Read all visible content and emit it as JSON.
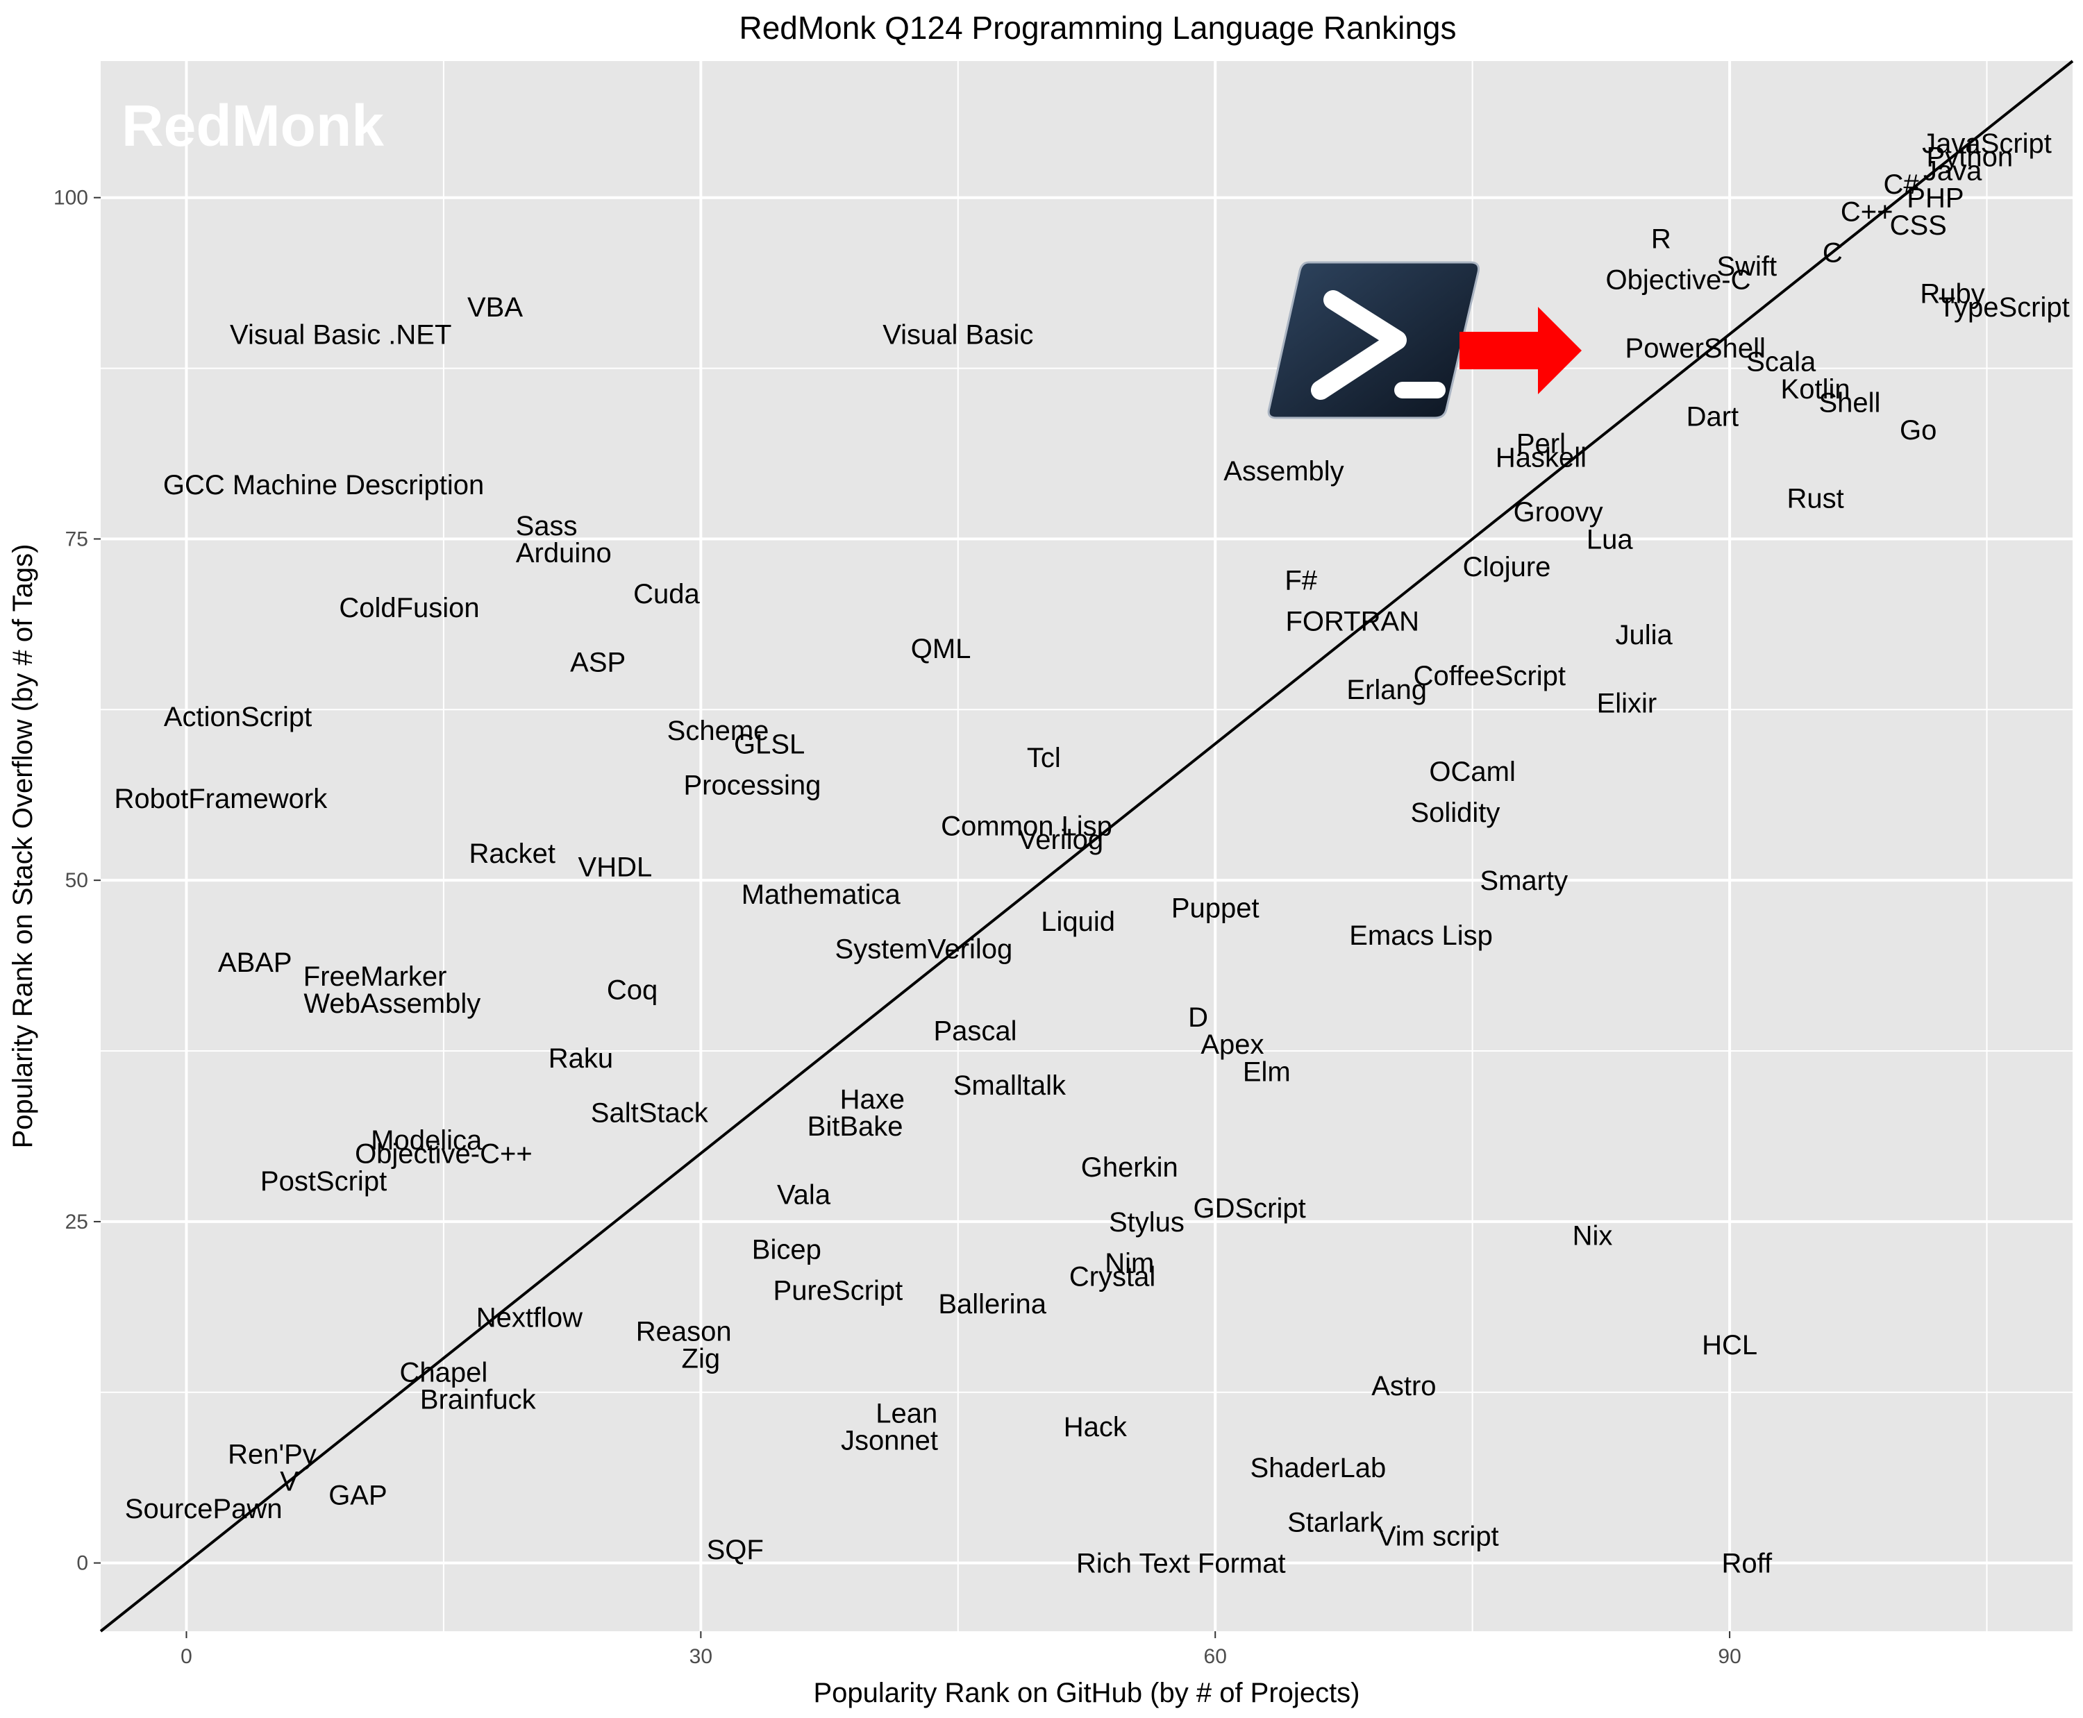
{
  "watermark": "RedMonk",
  "colors": {
    "panel": "#e6e6e6",
    "grid": "#ffffff",
    "arrow": "#ff0000",
    "diagonal": "#000000"
  },
  "icons": {
    "callout": "powershell-logo-icon"
  },
  "chart_data": {
    "type": "scatter",
    "title": "RedMonk Q124 Programming Language Rankings",
    "xlabel": "Popularity Rank on GitHub (by # of Projects)",
    "ylabel": "Popularity Rank on Stack Overflow (by # of Tags)",
    "xlim": [
      -5,
      110
    ],
    "ylim": [
      -5,
      110
    ],
    "xticks": [
      0,
      30,
      60,
      90
    ],
    "yticks": [
      0,
      25,
      50,
      75,
      100
    ],
    "grid": true,
    "reference_line": "y = x",
    "points": [
      {
        "label": "JavaScript",
        "x": 105,
        "y": 104
      },
      {
        "label": "Python",
        "x": 104,
        "y": 103
      },
      {
        "label": "Java",
        "x": 103,
        "y": 102
      },
      {
        "label": "C#",
        "x": 100,
        "y": 101
      },
      {
        "label": "PHP",
        "x": 102,
        "y": 100
      },
      {
        "label": "C++",
        "x": 98,
        "y": 99
      },
      {
        "label": "CSS",
        "x": 101,
        "y": 98
      },
      {
        "label": "R",
        "x": 86,
        "y": 97
      },
      {
        "label": "C",
        "x": 96,
        "y": 96
      },
      {
        "label": "Swift",
        "x": 91,
        "y": 95
      },
      {
        "label": "Objective-C",
        "x": 87,
        "y": 94
      },
      {
        "label": "Ruby",
        "x": 103,
        "y": 93
      },
      {
        "label": "TypeScript",
        "x": 106,
        "y": 92
      },
      {
        "label": "VBA",
        "x": 18,
        "y": 92
      },
      {
        "label": "Visual Basic .NET",
        "x": 9,
        "y": 90
      },
      {
        "label": "Visual Basic",
        "x": 45,
        "y": 90
      },
      {
        "label": "PowerShell",
        "x": 88,
        "y": 89
      },
      {
        "label": "Scala",
        "x": 93,
        "y": 88
      },
      {
        "label": "Kotlin",
        "x": 95,
        "y": 86
      },
      {
        "label": "Shell",
        "x": 97,
        "y": 85
      },
      {
        "label": "Dart",
        "x": 89,
        "y": 84
      },
      {
        "label": "Go",
        "x": 101,
        "y": 83
      },
      {
        "label": "Perl",
        "x": 79,
        "y": 82
      },
      {
        "label": "Haskell",
        "x": 79,
        "y": 81
      },
      {
        "label": "Assembly",
        "x": 64,
        "y": 80
      },
      {
        "label": "GCC Machine Description",
        "x": 8,
        "y": 79
      },
      {
        "label": "Rust",
        "x": 95,
        "y": 78
      },
      {
        "label": "Groovy",
        "x": 80,
        "y": 77
      },
      {
        "label": "Sass",
        "x": 21,
        "y": 76
      },
      {
        "label": "Lua",
        "x": 83,
        "y": 75
      },
      {
        "label": "Arduino",
        "x": 22,
        "y": 74
      },
      {
        "label": "Clojure",
        "x": 77,
        "y": 73
      },
      {
        "label": "F#",
        "x": 65,
        "y": 72
      },
      {
        "label": "Cuda",
        "x": 28,
        "y": 71
      },
      {
        "label": "ColdFusion",
        "x": 13,
        "y": 70
      },
      {
        "label": "FORTRAN",
        "x": 68,
        "y": 69
      },
      {
        "label": "Julia",
        "x": 85,
        "y": 68
      },
      {
        "label": "QML",
        "x": 44,
        "y": 67
      },
      {
        "label": "ASP",
        "x": 24,
        "y": 66
      },
      {
        "label": "CoffeeScript",
        "x": 76,
        "y": 65
      },
      {
        "label": "Erlang",
        "x": 70,
        "y": 64
      },
      {
        "label": "Elixir",
        "x": 84,
        "y": 63
      },
      {
        "label": "ActionScript",
        "x": 3,
        "y": 62
      },
      {
        "label": "Scheme",
        "x": 31,
        "y": 61
      },
      {
        "label": "GLSL",
        "x": 34,
        "y": 60
      },
      {
        "label": "Tcl",
        "x": 50,
        "y": 59
      },
      {
        "label": "OCaml",
        "x": 75,
        "y": 58
      },
      {
        "label": "Processing",
        "x": 33,
        "y": 57
      },
      {
        "label": "RobotFramework",
        "x": 2,
        "y": 56
      },
      {
        "label": "Solidity",
        "x": 74,
        "y": 55
      },
      {
        "label": "Common Lisp",
        "x": 49,
        "y": 54
      },
      {
        "label": "Verilog",
        "x": 51,
        "y": 53
      },
      {
        "label": "Racket",
        "x": 19,
        "y": 52
      },
      {
        "label": "VHDL",
        "x": 25,
        "y": 51
      },
      {
        "label": "Smarty",
        "x": 78,
        "y": 50
      },
      {
        "label": "Mathematica",
        "x": 37,
        "y": 49
      },
      {
        "label": "Puppet",
        "x": 60,
        "y": 48
      },
      {
        "label": "Liquid",
        "x": 52,
        "y": 47
      },
      {
        "label": "Emacs Lisp",
        "x": 72,
        "y": 46
      },
      {
        "label": "SystemVerilog",
        "x": 43,
        "y": 45
      },
      {
        "label": "ABAP",
        "x": 4,
        "y": 44
      },
      {
        "label": "FreeMarker",
        "x": 11,
        "y": 43
      },
      {
        "label": "Coq",
        "x": 26,
        "y": 42
      },
      {
        "label": "WebAssembly",
        "x": 12,
        "y": 41
      },
      {
        "label": "D",
        "x": 59,
        "y": 40
      },
      {
        "label": "Pascal",
        "x": 46,
        "y": 39
      },
      {
        "label": "Apex",
        "x": 61,
        "y": 38
      },
      {
        "label": "Raku",
        "x": 23,
        "y": 37
      },
      {
        "label": "Elm",
        "x": 63,
        "y": 36
      },
      {
        "label": "Smalltalk",
        "x": 48,
        "y": 35
      },
      {
        "label": "Haxe",
        "x": 40,
        "y": 34
      },
      {
        "label": "SaltStack",
        "x": 27,
        "y": 33
      },
      {
        "label": "BitBake",
        "x": 39,
        "y": 32
      },
      {
        "label": "Modelica",
        "x": 14,
        "y": 31
      },
      {
        "label": "Objective-C++",
        "x": 15,
        "y": 30
      },
      {
        "label": "Gherkin",
        "x": 55,
        "y": 29
      },
      {
        "label": "PostScript",
        "x": 8,
        "y": 28
      },
      {
        "label": "Vala",
        "x": 36,
        "y": 27
      },
      {
        "label": "GDScript",
        "x": 62,
        "y": 26
      },
      {
        "label": "Stylus",
        "x": 56,
        "y": 25
      },
      {
        "label": "Nix",
        "x": 82,
        "y": 24
      },
      {
        "label": "Bicep",
        "x": 35,
        "y": 23
      },
      {
        "label": "Nim",
        "x": 55,
        "y": 22
      },
      {
        "label": "Crystal",
        "x": 54,
        "y": 21
      },
      {
        "label": "PureScript",
        "x": 38,
        "y": 20
      },
      {
        "label": "Ballerina",
        "x": 47,
        "y": 19
      },
      {
        "label": "Nextflow",
        "x": 20,
        "y": 18
      },
      {
        "label": "Reason",
        "x": 29,
        "y": 17
      },
      {
        "label": "HCL",
        "x": 90,
        "y": 16
      },
      {
        "label": "Zig",
        "x": 30,
        "y": 15
      },
      {
        "label": "Chapel",
        "x": 15,
        "y": 14
      },
      {
        "label": "Astro",
        "x": 71,
        "y": 13
      },
      {
        "label": "Brainfuck",
        "x": 17,
        "y": 12
      },
      {
        "label": "Lean",
        "x": 42,
        "y": 11
      },
      {
        "label": "Hack",
        "x": 53,
        "y": 10
      },
      {
        "label": "Jsonnet",
        "x": 41,
        "y": 9
      },
      {
        "label": "Ren'Py",
        "x": 5,
        "y": 8
      },
      {
        "label": "ShaderLab",
        "x": 66,
        "y": 7
      },
      {
        "label": "V",
        "x": 6,
        "y": 6
      },
      {
        "label": "GAP",
        "x": 10,
        "y": 5
      },
      {
        "label": "SourcePawn",
        "x": 1,
        "y": 4
      },
      {
        "label": "Starlark",
        "x": 67,
        "y": 3
      },
      {
        "label": "Vim script",
        "x": 73,
        "y": 2
      },
      {
        "label": "SQF",
        "x": 32,
        "y": 1
      },
      {
        "label": "Rich Text Format",
        "x": 58,
        "y": 0
      },
      {
        "label": "Roff",
        "x": 91,
        "y": 0
      }
    ]
  }
}
